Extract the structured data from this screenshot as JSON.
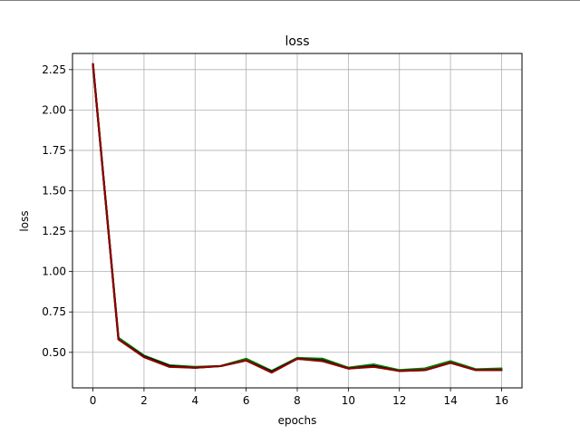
{
  "chart_data": {
    "type": "line",
    "title": "loss",
    "xlabel": "epochs",
    "ylabel": "loss",
    "grid": true,
    "xlim": [
      -0.8,
      16.8
    ],
    "ylim": [
      0.28,
      2.35
    ],
    "xticks": [
      0,
      2,
      4,
      6,
      8,
      10,
      12,
      14,
      16
    ],
    "xtick_labels": [
      "0",
      "2",
      "4",
      "6",
      "8",
      "10",
      "12",
      "14",
      "16"
    ],
    "yticks": [
      0.5,
      0.75,
      1.0,
      1.25,
      1.5,
      1.75,
      2.0,
      2.25
    ],
    "ytick_labels": [
      "0.50",
      "0.75",
      "1.00",
      "1.25",
      "1.50",
      "1.75",
      "2.00",
      "2.25"
    ],
    "x": [
      0,
      1,
      2,
      3,
      4,
      5,
      6,
      7,
      8,
      9,
      10,
      11,
      12,
      13,
      14,
      15,
      16
    ],
    "series": [
      {
        "name": "green",
        "color": "#008000",
        "values": [
          2.28,
          0.59,
          0.48,
          0.42,
          0.41,
          0.415,
          0.46,
          0.385,
          0.465,
          0.46,
          0.405,
          0.425,
          0.39,
          0.4,
          0.445,
          0.395,
          0.4
        ]
      },
      {
        "name": "black",
        "color": "#000000",
        "values": [
          2.285,
          0.58,
          0.475,
          0.415,
          0.405,
          0.415,
          0.45,
          0.38,
          0.46,
          0.45,
          0.4,
          0.415,
          0.385,
          0.39,
          0.435,
          0.39,
          0.39
        ]
      },
      {
        "name": "red",
        "color": "#8b0000",
        "values": [
          2.285,
          0.58,
          0.47,
          0.41,
          0.405,
          0.415,
          0.45,
          0.375,
          0.46,
          0.445,
          0.4,
          0.41,
          0.385,
          0.39,
          0.435,
          0.39,
          0.39
        ]
      }
    ]
  }
}
